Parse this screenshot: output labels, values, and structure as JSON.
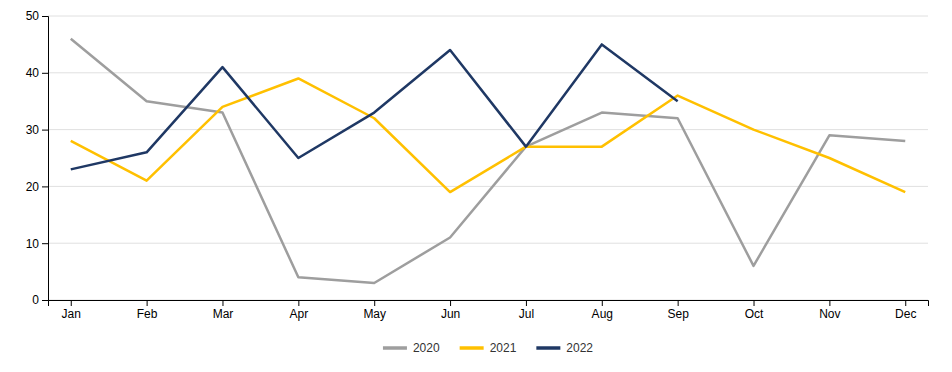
{
  "chart_data": {
    "type": "line",
    "categories": [
      "Jan",
      "Feb",
      "Mar",
      "Apr",
      "May",
      "Jun",
      "Jul",
      "Aug",
      "Sep",
      "Oct",
      "Nov",
      "Dec"
    ],
    "series": [
      {
        "name": "2020",
        "color": "#9E9E9E",
        "values": [
          46,
          35,
          33,
          4,
          3,
          11,
          27,
          33,
          32,
          6,
          29,
          28
        ]
      },
      {
        "name": "2021",
        "color": "#FFC000",
        "values": [
          28,
          21,
          34,
          39,
          32,
          19,
          27,
          27,
          36,
          30,
          25,
          19
        ]
      },
      {
        "name": "2022",
        "color": "#1F3864",
        "values": [
          23,
          26,
          41,
          25,
          33,
          44,
          27,
          45,
          35,
          null,
          null,
          null
        ]
      }
    ],
    "ylim": [
      0,
      50
    ],
    "yticks": [
      0,
      10,
      20,
      30,
      40,
      50
    ],
    "grid": true,
    "legend": "bottom"
  }
}
